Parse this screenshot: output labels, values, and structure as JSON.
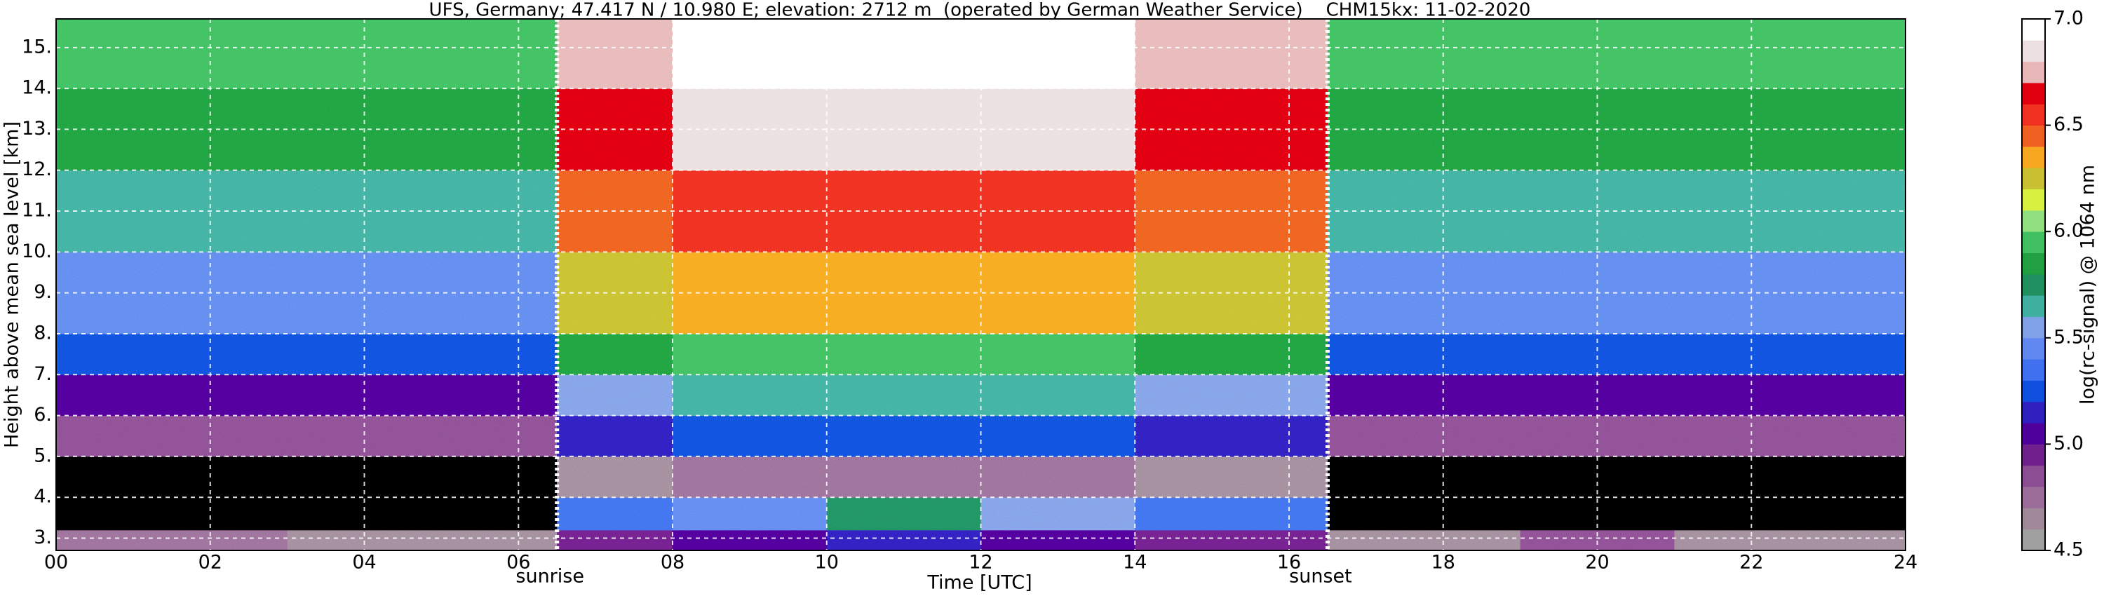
{
  "chart_data": {
    "type": "heatmap",
    "title": "UFS, Germany; 47.417 N / 10.980 E; elevation: 2712 m  (operated by German Weather Service)    CHM15kx: 11-02-2020",
    "xlabel": "Time [UTC]",
    "ylabel": "Height above mean sea level [km]",
    "xlim": [
      0,
      24
    ],
    "xticks": [
      {
        "value": 0,
        "label": "00"
      },
      {
        "value": 2,
        "label": "02"
      },
      {
        "value": 4,
        "label": "04"
      },
      {
        "value": 6,
        "label": "06"
      },
      {
        "value": 8,
        "label": "08"
      },
      10,
      12,
      14,
      16,
      18,
      20,
      22,
      24
    ],
    "ylim": [
      2.7,
      15.7
    ],
    "yticks": [
      {
        "value": 3,
        "label": "3."
      },
      {
        "value": 4,
        "label": "4."
      },
      {
        "value": 5,
        "label": "5."
      },
      {
        "value": 6,
        "label": "6."
      },
      {
        "value": 7,
        "label": "7."
      },
      {
        "value": 8,
        "label": "8."
      },
      {
        "value": 9,
        "label": "9."
      },
      {
        "value": 10,
        "label": "10."
      },
      {
        "value": 11,
        "label": "11."
      },
      {
        "value": 12,
        "label": "12."
      },
      {
        "value": 13,
        "label": "13."
      },
      {
        "value": 14,
        "label": "14."
      },
      {
        "value": 15,
        "label": "15."
      }
    ],
    "grid": true,
    "x_edges": [
      0,
      3,
      6.5,
      8,
      10,
      12,
      14,
      16.5,
      19,
      21,
      24
    ],
    "y_edges": [
      2.7,
      3.2,
      4,
      5,
      6,
      7,
      8,
      10,
      12,
      14,
      15.7
    ],
    "z": [
      [
        4.7,
        4.6,
        4.9,
        5.0,
        5.1,
        5.0,
        4.9,
        4.6,
        4.8,
        4.6
      ],
      [
        4.4,
        4.4,
        5.3,
        5.4,
        5.7,
        5.5,
        5.3,
        4.4,
        4.4,
        4.4
      ],
      [
        4.4,
        4.4,
        4.6,
        4.7,
        4.7,
        4.7,
        4.6,
        4.4,
        4.4,
        4.4
      ],
      [
        4.8,
        4.8,
        5.1,
        5.2,
        5.2,
        5.2,
        5.1,
        4.8,
        4.8,
        4.8
      ],
      [
        5.0,
        5.0,
        5.5,
        5.6,
        5.6,
        5.6,
        5.5,
        5.0,
        5.0,
        5.0
      ],
      [
        5.2,
        5.2,
        5.8,
        5.9,
        5.9,
        5.9,
        5.8,
        5.2,
        5.2,
        5.2
      ],
      [
        5.4,
        5.4,
        6.2,
        6.3,
        6.3,
        6.3,
        6.2,
        5.4,
        5.4,
        5.4
      ],
      [
        5.6,
        5.6,
        6.4,
        6.5,
        6.5,
        6.5,
        6.4,
        5.6,
        5.6,
        5.6
      ],
      [
        5.8,
        5.8,
        6.6,
        6.8,
        6.8,
        6.8,
        6.6,
        5.8,
        5.8,
        5.8
      ],
      [
        5.9,
        5.9,
        6.7,
        6.9,
        6.9,
        6.9,
        6.7,
        5.9,
        5.9,
        5.9
      ]
    ],
    "annotations": [
      {
        "x": 6.5,
        "label": "sunrise"
      },
      {
        "x": 16.5,
        "label": "sunset"
      }
    ],
    "colorbar": {
      "label": "log(rc-signal) @ 1064 nm",
      "lim": [
        4.5,
        7.0
      ],
      "step": 0.1,
      "ticks": [
        4.5,
        {
          "value": 5,
          "label": "5.0"
        },
        5.5,
        {
          "value": 6,
          "label": "6.0"
        },
        6.5,
        {
          "value": 7,
          "label": "7.0"
        }
      ],
      "under_color": "#000000",
      "colors": [
        "#a0a0a0",
        "#a08a9a",
        "#9a6e98",
        "#8c4e92",
        "#70208c",
        "#50009a",
        "#3020c0",
        "#1050e0",
        "#4070f0",
        "#6088f0",
        "#80a0e8",
        "#40b0a0",
        "#209060",
        "#20a040",
        "#40c060",
        "#90e080",
        "#d8f040",
        "#c8c030",
        "#f8a820",
        "#f06020",
        "#f03020",
        "#e00010",
        "#e8b8b8",
        "#ece0e0",
        "#ffffff"
      ]
    }
  }
}
